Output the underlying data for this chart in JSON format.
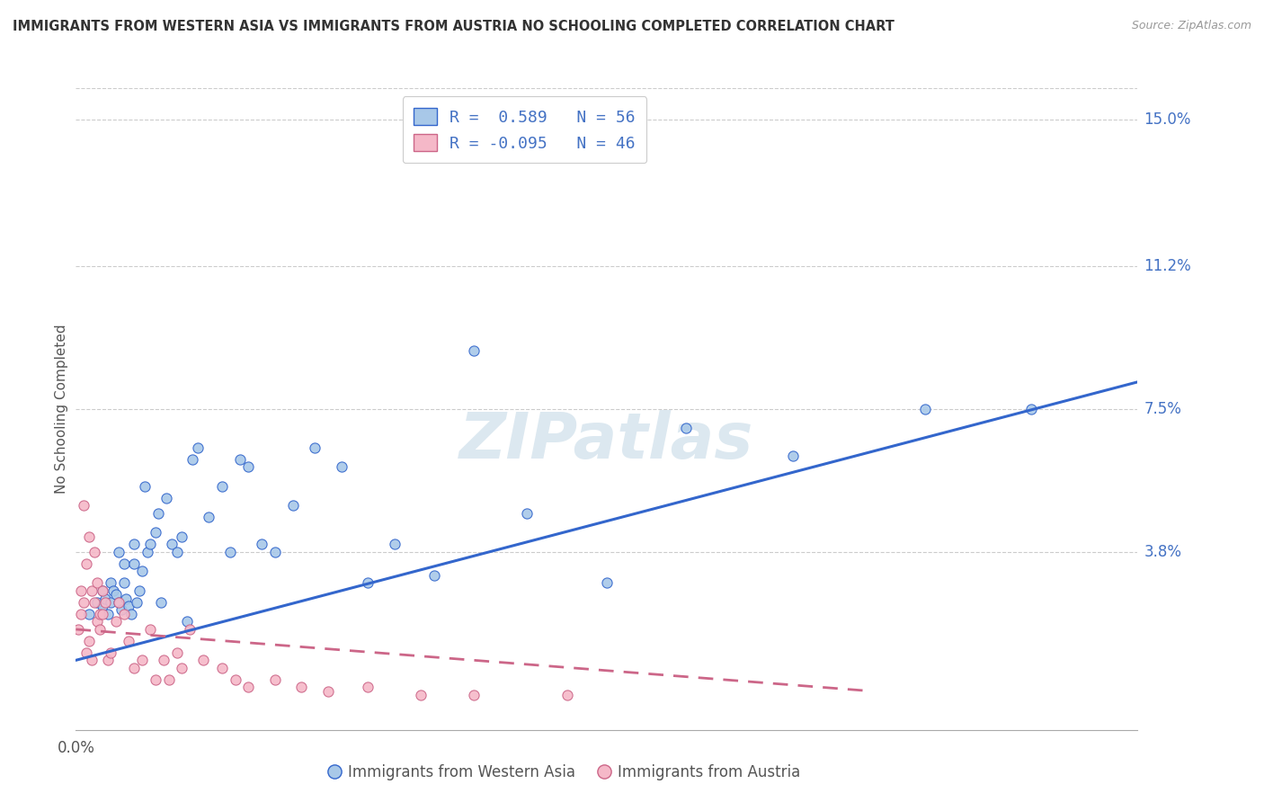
{
  "title": "IMMIGRANTS FROM WESTERN ASIA VS IMMIGRANTS FROM AUSTRIA NO SCHOOLING COMPLETED CORRELATION CHART",
  "source": "Source: ZipAtlas.com",
  "ylabel": "No Schooling Completed",
  "yticks": [
    0.0,
    0.038,
    0.075,
    0.112,
    0.15
  ],
  "ytick_labels": [
    "",
    "3.8%",
    "7.5%",
    "11.2%",
    "15.0%"
  ],
  "xlim": [
    0.0,
    0.4
  ],
  "ylim": [
    -0.008,
    0.158
  ],
  "color_blue": "#a8c8e8",
  "color_pink": "#f5b8c8",
  "line_blue": "#3366cc",
  "line_pink": "#cc6688",
  "watermark_color": "#dce8f0",
  "blue_scatter_x": [
    0.005,
    0.008,
    0.01,
    0.01,
    0.011,
    0.012,
    0.013,
    0.013,
    0.014,
    0.015,
    0.016,
    0.016,
    0.017,
    0.018,
    0.018,
    0.019,
    0.02,
    0.021,
    0.022,
    0.022,
    0.023,
    0.024,
    0.025,
    0.026,
    0.027,
    0.028,
    0.03,
    0.031,
    0.032,
    0.034,
    0.036,
    0.038,
    0.04,
    0.042,
    0.044,
    0.046,
    0.05,
    0.055,
    0.058,
    0.062,
    0.065,
    0.07,
    0.075,
    0.082,
    0.09,
    0.1,
    0.11,
    0.12,
    0.135,
    0.15,
    0.17,
    0.2,
    0.23,
    0.27,
    0.32,
    0.36
  ],
  "blue_scatter_y": [
    0.022,
    0.025,
    0.024,
    0.028,
    0.026,
    0.022,
    0.025,
    0.03,
    0.028,
    0.027,
    0.025,
    0.038,
    0.023,
    0.03,
    0.035,
    0.026,
    0.024,
    0.022,
    0.035,
    0.04,
    0.025,
    0.028,
    0.033,
    0.055,
    0.038,
    0.04,
    0.043,
    0.048,
    0.025,
    0.052,
    0.04,
    0.038,
    0.042,
    0.02,
    0.062,
    0.065,
    0.047,
    0.055,
    0.038,
    0.062,
    0.06,
    0.04,
    0.038,
    0.05,
    0.065,
    0.06,
    0.03,
    0.04,
    0.032,
    0.09,
    0.048,
    0.03,
    0.07,
    0.063,
    0.075,
    0.075
  ],
  "pink_scatter_x": [
    0.001,
    0.002,
    0.002,
    0.003,
    0.003,
    0.004,
    0.004,
    0.005,
    0.005,
    0.006,
    0.006,
    0.007,
    0.007,
    0.008,
    0.008,
    0.009,
    0.009,
    0.01,
    0.01,
    0.011,
    0.012,
    0.013,
    0.015,
    0.016,
    0.018,
    0.02,
    0.022,
    0.025,
    0.028,
    0.03,
    0.033,
    0.035,
    0.038,
    0.04,
    0.043,
    0.048,
    0.055,
    0.06,
    0.065,
    0.075,
    0.085,
    0.095,
    0.11,
    0.13,
    0.15,
    0.185
  ],
  "pink_scatter_y": [
    0.018,
    0.022,
    0.028,
    0.025,
    0.05,
    0.012,
    0.035,
    0.015,
    0.042,
    0.01,
    0.028,
    0.025,
    0.038,
    0.03,
    0.02,
    0.018,
    0.022,
    0.022,
    0.028,
    0.025,
    0.01,
    0.012,
    0.02,
    0.025,
    0.022,
    0.015,
    0.008,
    0.01,
    0.018,
    0.005,
    0.01,
    0.005,
    0.012,
    0.008,
    0.018,
    0.01,
    0.008,
    0.005,
    0.003,
    0.005,
    0.003,
    0.002,
    0.003,
    0.001,
    0.001,
    0.001
  ],
  "blue_line_x": [
    0.0,
    0.4
  ],
  "blue_line_y": [
    0.01,
    0.082
  ],
  "pink_line_x": [
    0.0,
    0.3
  ],
  "pink_line_y": [
    0.018,
    0.002
  ],
  "pink_line_dash": [
    6,
    4
  ]
}
